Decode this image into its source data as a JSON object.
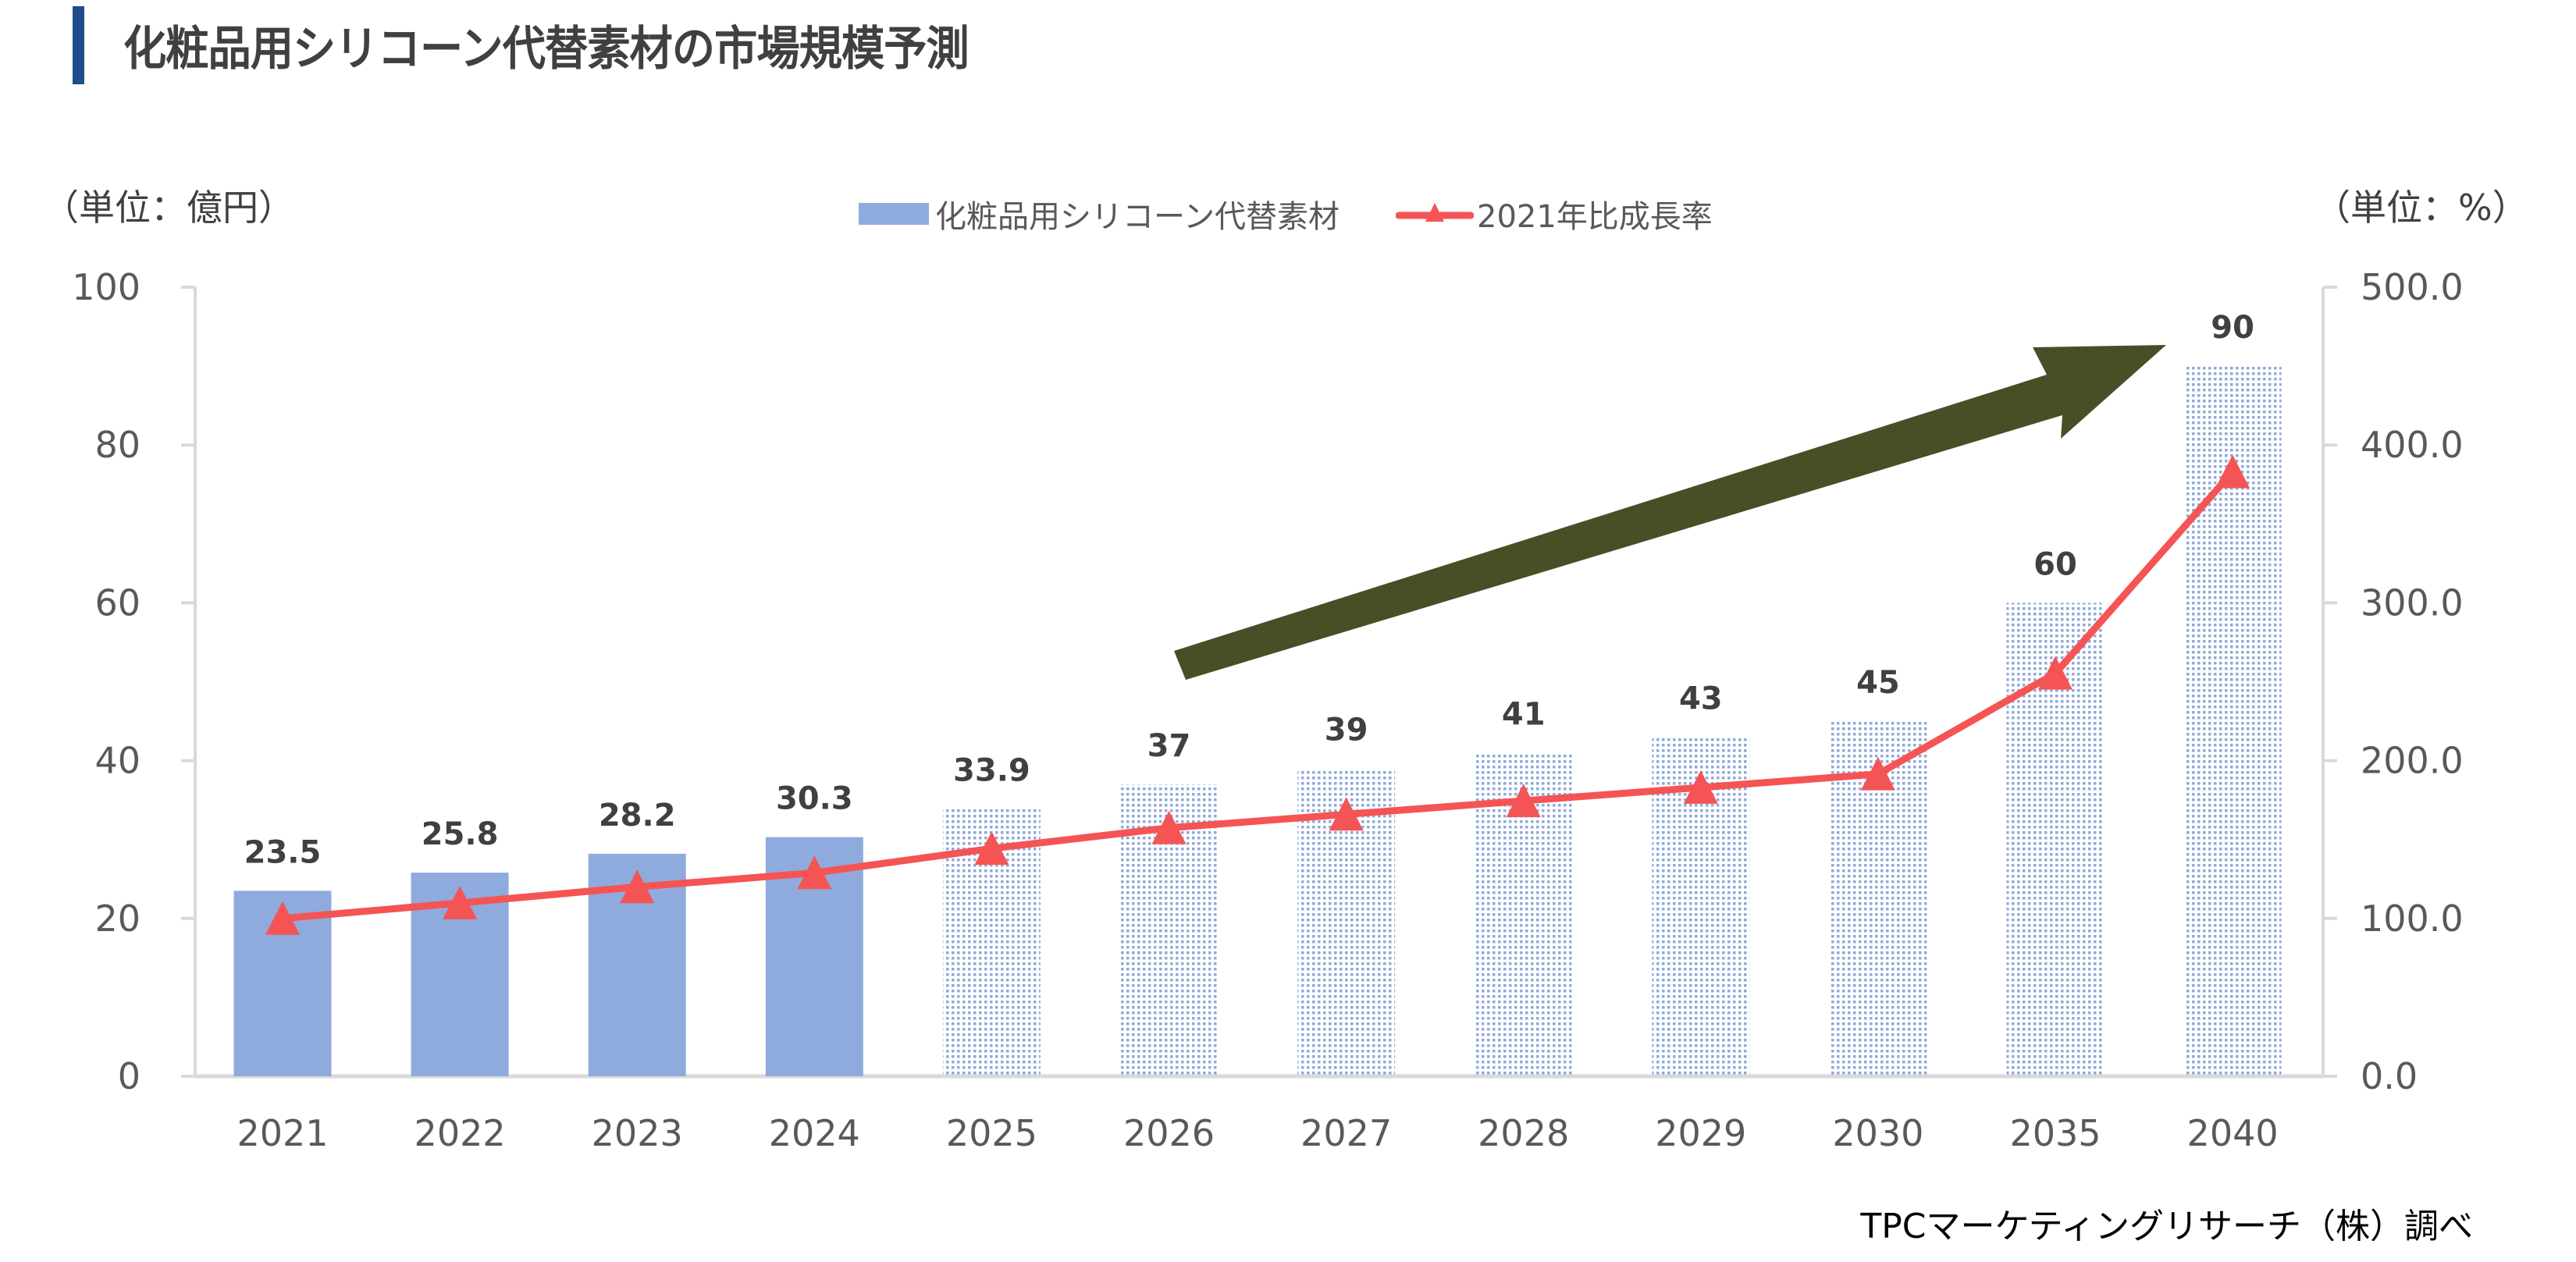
{
  "header": {
    "title": "化粧品用シリコーン代替素材の市場規模予測"
  },
  "units": {
    "left": "（単位：億円）",
    "right": "（単位：%）"
  },
  "legend": {
    "bar_label": "化粧品用シリコーン代替素材",
    "line_label": "2021年比成長率"
  },
  "footer": {
    "source": "TPCマーケティングリサーチ（株）調べ"
  },
  "colors": {
    "bar_actual": "#8faadc",
    "bar_forecast_dot": "#8faadc",
    "line": "#f55454",
    "arrow": "#474f26",
    "axis": "#d9d9d9",
    "title_accent": "#1f4e8c"
  },
  "chart_data": {
    "type": "bar",
    "title": "化粧品用シリコーン代替素材の市場規模予測",
    "categories": [
      "2021",
      "2022",
      "2023",
      "2024",
      "2025",
      "2026",
      "2027",
      "2028",
      "2029",
      "2030",
      "2035",
      "2040"
    ],
    "series": [
      {
        "name": "化粧品用シリコーン代替素材",
        "type": "bar",
        "axis": "left",
        "values": [
          23.5,
          25.8,
          28.2,
          30.3,
          33.9,
          37,
          39,
          41,
          43,
          45,
          60,
          90
        ],
        "labels": [
          "23.5",
          "25.8",
          "28.2",
          "30.3",
          "33.9",
          "37",
          "39",
          "41",
          "43",
          "45",
          "60",
          "90"
        ],
        "forecast_from_index": 4
      },
      {
        "name": "2021年比成長率",
        "type": "line",
        "axis": "right",
        "marker": "triangle",
        "values": [
          100.0,
          109.8,
          120.0,
          128.9,
          144.3,
          157.4,
          166.0,
          174.5,
          183.0,
          191.5,
          255.3,
          383.0
        ]
      }
    ],
    "ylabel": "（単位：億円）",
    "ylabel_right": "（単位：%）",
    "ylim": [
      0,
      100
    ],
    "yticks": [
      "0",
      "20",
      "40",
      "60",
      "80",
      "100"
    ],
    "ylim_right": [
      0,
      500
    ],
    "yticks_right": [
      "0.0",
      "100.0",
      "200.0",
      "300.0",
      "400.0",
      "500.0"
    ],
    "grid": false,
    "legend_position": "top-center",
    "annotations": [
      "upward trend arrow"
    ]
  }
}
